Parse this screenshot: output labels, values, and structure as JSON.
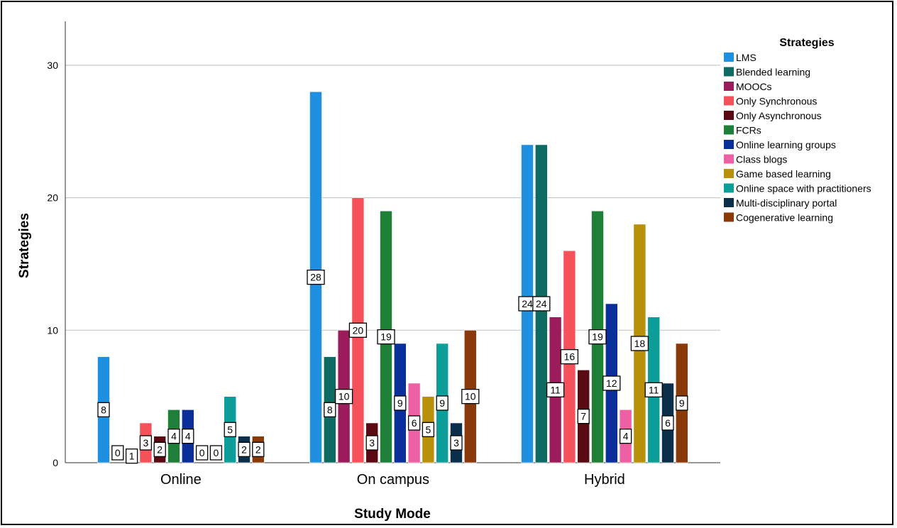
{
  "chart_data": {
    "type": "bar",
    "xlabel": "Study Mode",
    "ylabel": "Strategies",
    "ylim": [
      0,
      32
    ],
    "yticks": [
      0,
      10,
      20,
      30
    ],
    "grid": true,
    "legend_title": "Strategies",
    "legend_position": "right",
    "categories": [
      "Online",
      "On campus",
      "Hybrid"
    ],
    "series": [
      {
        "name": "LMS",
        "color": "#1f8fe0",
        "values": [
          8,
          28,
          24
        ]
      },
      {
        "name": "Blended learning",
        "color": "#0e6b63",
        "values": [
          0,
          8,
          24
        ]
      },
      {
        "name": "MOOCs",
        "color": "#9b1c5a",
        "values": [
          1,
          10,
          11
        ]
      },
      {
        "name": "Only Synchronous",
        "color": "#f4515a",
        "values": [
          3,
          20,
          16
        ]
      },
      {
        "name": "Only Asynchronous",
        "color": "#5a0a12",
        "values": [
          2,
          3,
          7
        ]
      },
      {
        "name": "FCRs",
        "color": "#1e8038",
        "values": [
          4,
          19,
          19
        ]
      },
      {
        "name": "Online learning groups",
        "color": "#0b2f9a",
        "values": [
          4,
          9,
          12
        ]
      },
      {
        "name": "Class blogs",
        "color": "#ee5fa3",
        "values": [
          0,
          6,
          4
        ]
      },
      {
        "name": "Game based learning",
        "color": "#b8900a",
        "values": [
          0,
          5,
          18
        ]
      },
      {
        "name": "Online space with practitioners",
        "color": "#0e9e9a",
        "values": [
          5,
          9,
          11
        ]
      },
      {
        "name": "Multi-disciplinary portal",
        "color": "#0b2e4a",
        "values": [
          2,
          3,
          6
        ]
      },
      {
        "name": "Cogenerative learning",
        "color": "#8a3a08",
        "values": [
          2,
          10,
          9
        ]
      }
    ]
  }
}
